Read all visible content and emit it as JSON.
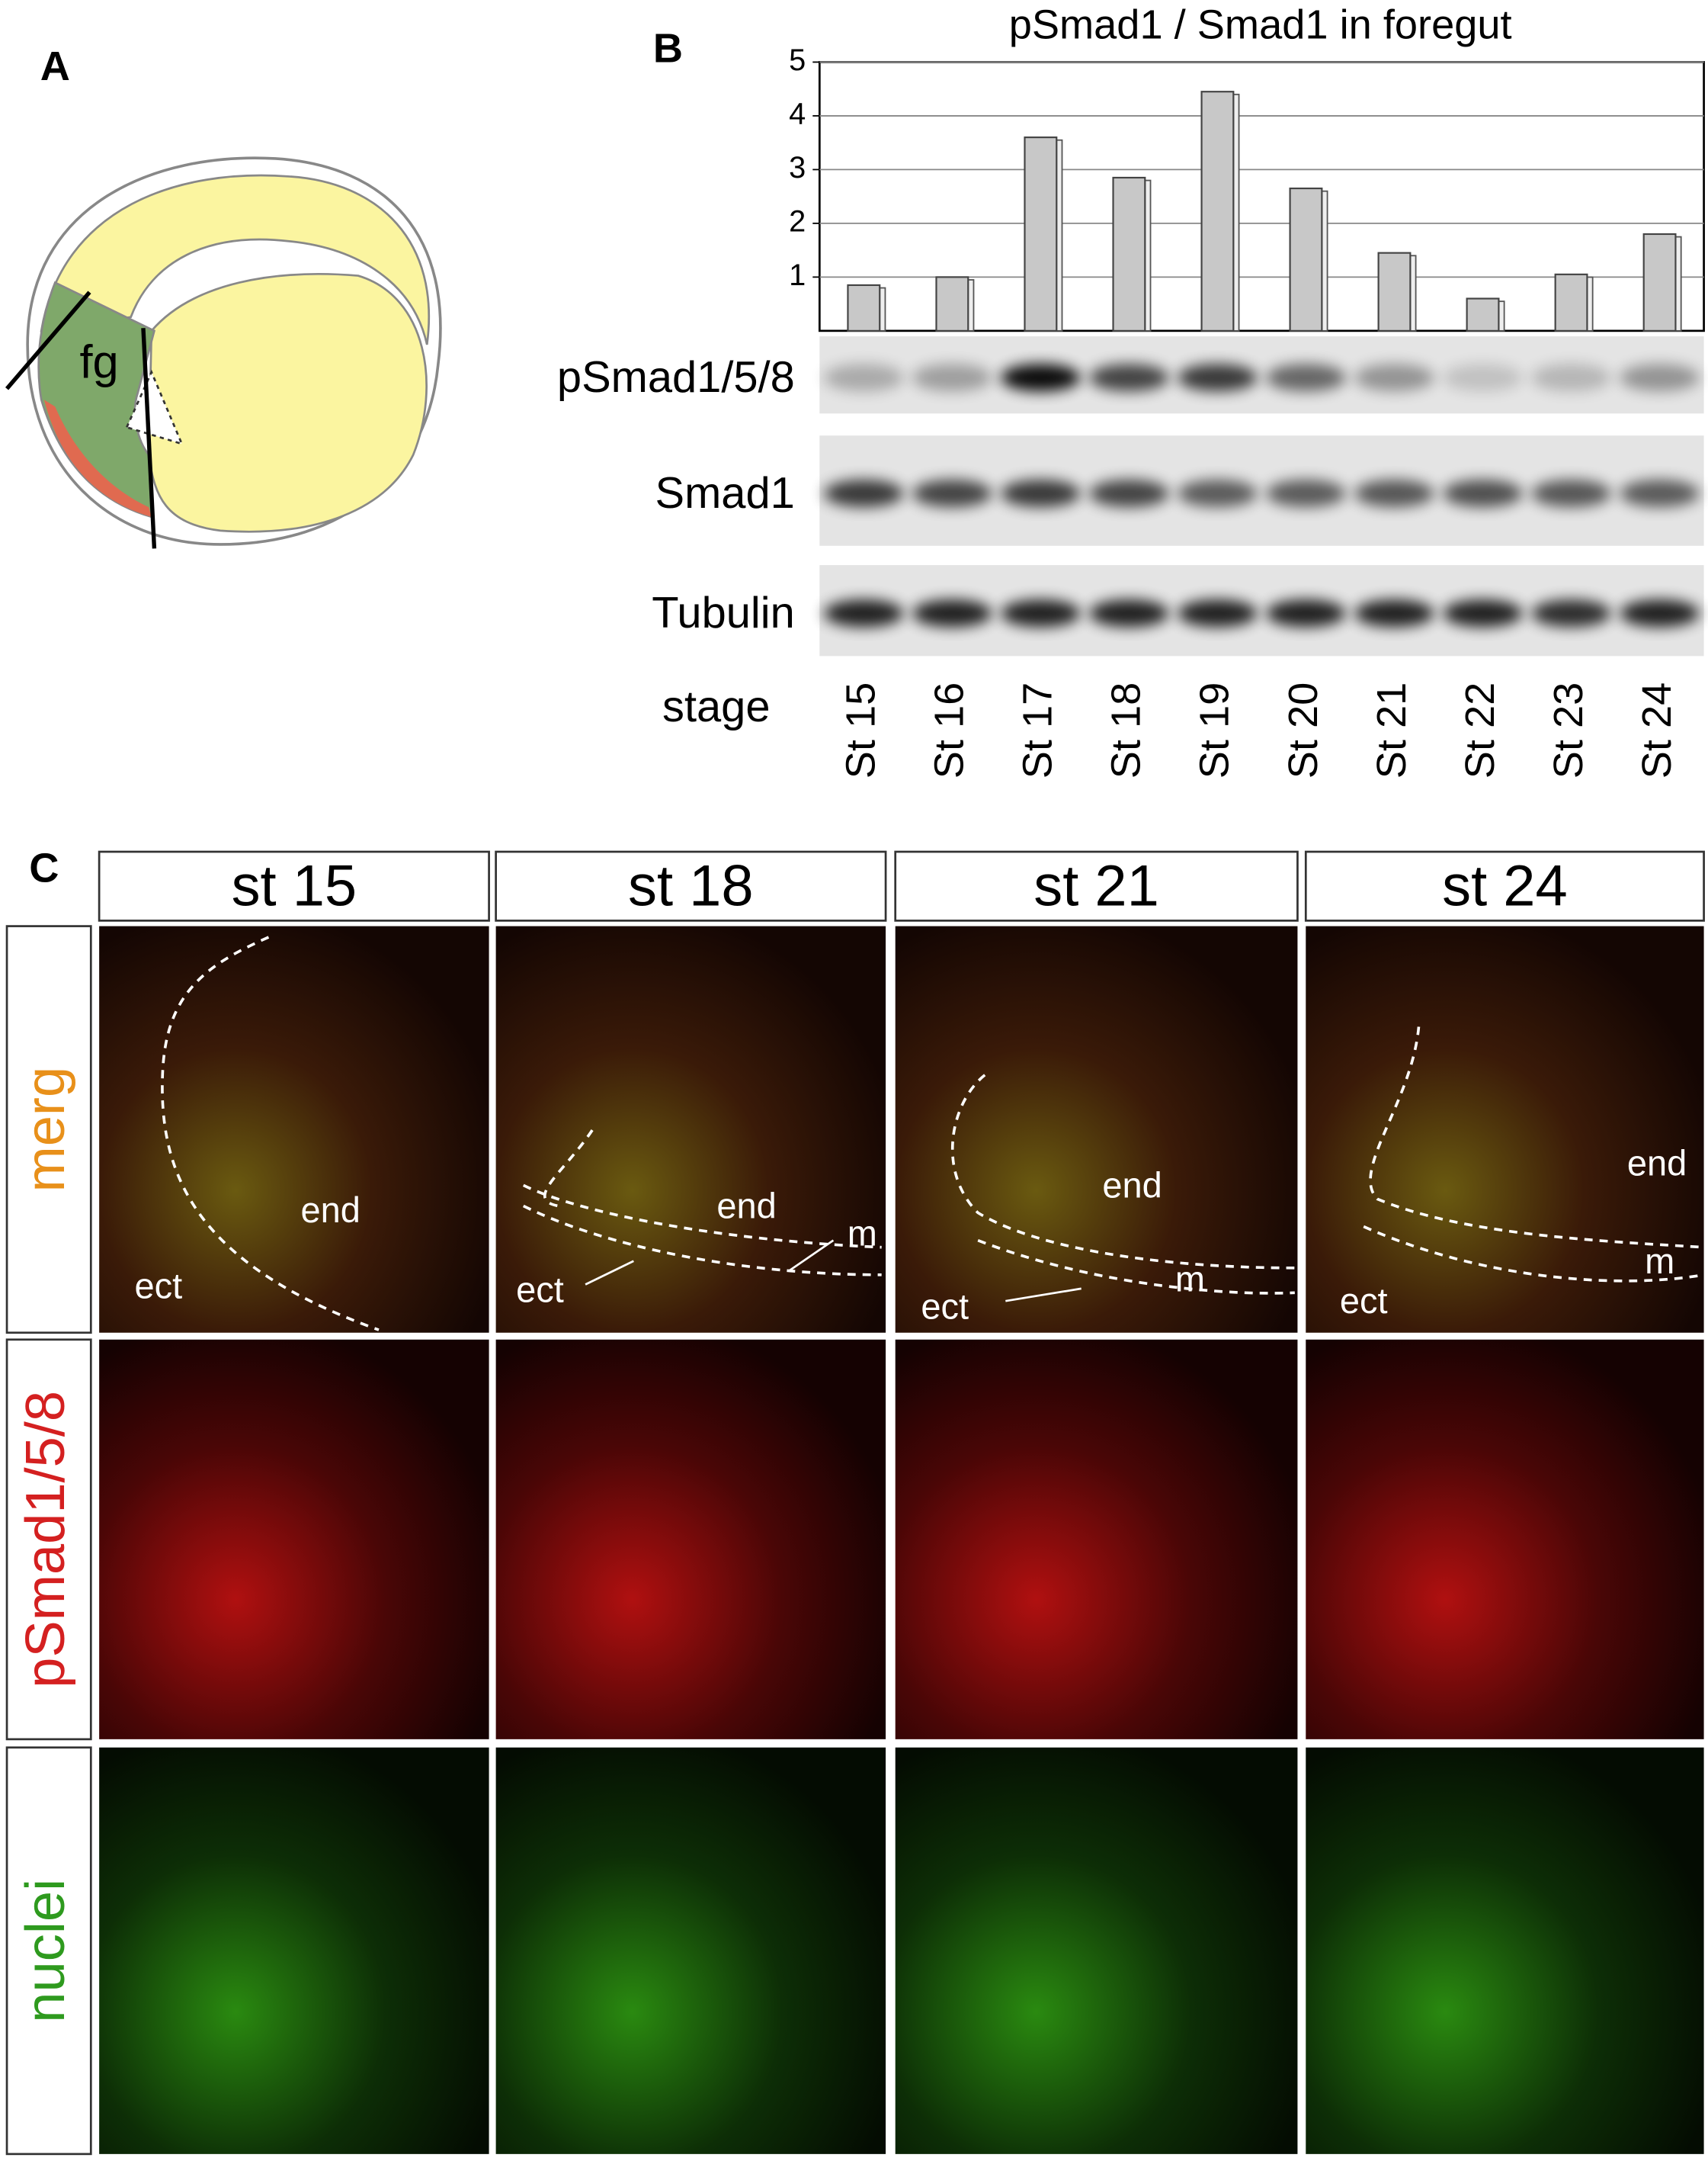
{
  "panel_labels": [
    "A",
    "B",
    "C"
  ],
  "diagram": {
    "label": "fg"
  },
  "chart_data": {
    "type": "bar",
    "title": "pSmad1 / Smad1  in foregut",
    "categories": [
      "St 15",
      "St 16",
      "St 17",
      "St 18",
      "St 19",
      "St 20",
      "St 21",
      "St 22",
      "St 23",
      "St 24"
    ],
    "values": [
      0.85,
      1.0,
      3.6,
      2.85,
      4.45,
      2.65,
      1.45,
      0.6,
      1.05,
      1.8
    ],
    "color": "#c8c8c8",
    "ylim": [
      0,
      5
    ],
    "yticks": [
      1,
      2,
      3,
      4,
      5
    ],
    "grid": true
  },
  "blot": {
    "rows": [
      "pSmad1/5/8",
      "Smad1",
      "Tubulin"
    ],
    "stage_label": "stage"
  },
  "micrographs": {
    "columns": [
      "st 15",
      "st 18",
      "st 21",
      "st 24"
    ],
    "rows": [
      "merg",
      "pSmad1/5/8",
      "nuclei"
    ],
    "annotations": [
      [
        "end",
        "ect"
      ],
      [
        "end",
        "m",
        "ect"
      ],
      [
        "end",
        "m",
        "ect"
      ],
      [
        "end",
        "m",
        "ect"
      ]
    ]
  }
}
